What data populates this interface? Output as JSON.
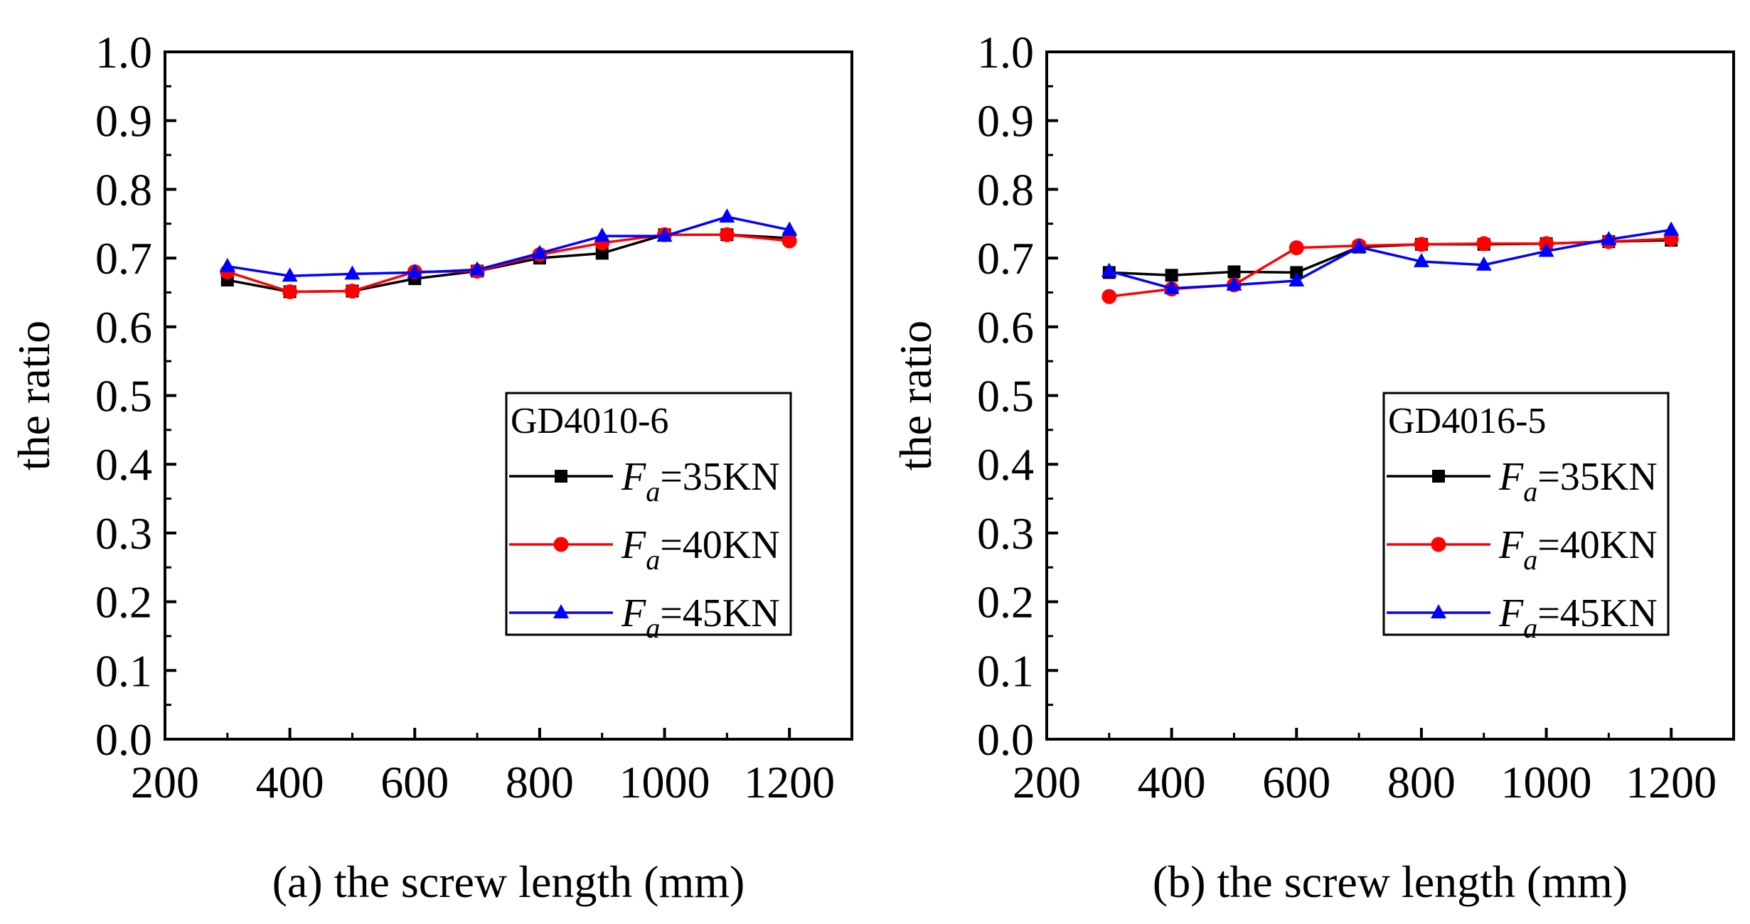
{
  "colors": {
    "series_1": "#000000",
    "series_2": "#ff0000",
    "series_3": "#0000ff"
  },
  "chart_data": [
    {
      "type": "line",
      "xlabel": "(a) the screw length (mm)",
      "ylabel": "the ratio",
      "xlim": [
        200,
        1300
      ],
      "ylim": [
        0.0,
        1.0
      ],
      "x_ticks": [
        "200",
        "400",
        "600",
        "800",
        "1000",
        "1200"
      ],
      "y_ticks": [
        "0.0",
        "0.1",
        "0.2",
        "0.3",
        "0.4",
        "0.5",
        "0.6",
        "0.7",
        "0.8",
        "0.9",
        "1.0"
      ],
      "grid": false,
      "legend": {
        "title": "GD4010-6",
        "position": "lower-right"
      },
      "x": [
        300,
        400,
        500,
        600,
        700,
        800,
        900,
        1000,
        1100,
        1200
      ],
      "series": [
        {
          "name": "F_a=35KN",
          "label_main": "F",
          "label_sub": "a",
          "label_rest": "=35KN",
          "marker": "square",
          "values": [
            0.668,
            0.651,
            0.652,
            0.67,
            0.681,
            0.7,
            0.707,
            0.734,
            0.734,
            0.729
          ]
        },
        {
          "name": "F_a=40KN",
          "label_main": "F",
          "label_sub": "a",
          "label_rest": "=40KN",
          "marker": "circle",
          "values": [
            0.68,
            0.651,
            0.652,
            0.68,
            0.681,
            0.705,
            0.722,
            0.734,
            0.734,
            0.725
          ]
        },
        {
          "name": "F_a=45KN",
          "label_main": "F",
          "label_sub": "a",
          "label_rest": "=45KN",
          "marker": "triangle",
          "values": [
            0.688,
            0.674,
            0.677,
            0.679,
            0.683,
            0.707,
            0.732,
            0.732,
            0.76,
            0.741
          ]
        }
      ]
    },
    {
      "type": "line",
      "xlabel": "(b) the screw length (mm)",
      "ylabel": "the ratio",
      "xlim": [
        200,
        1300
      ],
      "ylim": [
        0.0,
        1.0
      ],
      "x_ticks": [
        "200",
        "400",
        "600",
        "800",
        "1000",
        "1200"
      ],
      "y_ticks": [
        "0.0",
        "0.1",
        "0.2",
        "0.3",
        "0.4",
        "0.5",
        "0.6",
        "0.7",
        "0.8",
        "0.9",
        "1.0"
      ],
      "grid": false,
      "legend": {
        "title": "GD4016-5",
        "position": "lower-right"
      },
      "x": [
        300,
        400,
        500,
        600,
        700,
        800,
        900,
        1000,
        1100,
        1200
      ],
      "series": [
        {
          "name": "F_a=35KN",
          "label_main": "F",
          "label_sub": "a",
          "label_rest": "=35KN",
          "marker": "square",
          "values": [
            0.679,
            0.675,
            0.68,
            0.679,
            0.716,
            0.72,
            0.72,
            0.721,
            0.724,
            0.726
          ]
        },
        {
          "name": "F_a=40KN",
          "label_main": "F",
          "label_sub": "a",
          "label_rest": "=40KN",
          "marker": "circle",
          "values": [
            0.644,
            0.655,
            0.661,
            0.715,
            0.718,
            0.72,
            0.721,
            0.721,
            0.724,
            0.728
          ]
        },
        {
          "name": "F_a=45KN",
          "label_main": "F",
          "label_sub": "a",
          "label_rest": "=45KN",
          "marker": "triangle",
          "values": [
            0.681,
            0.656,
            0.661,
            0.667,
            0.716,
            0.695,
            0.69,
            0.71,
            0.727,
            0.741
          ]
        }
      ]
    }
  ]
}
